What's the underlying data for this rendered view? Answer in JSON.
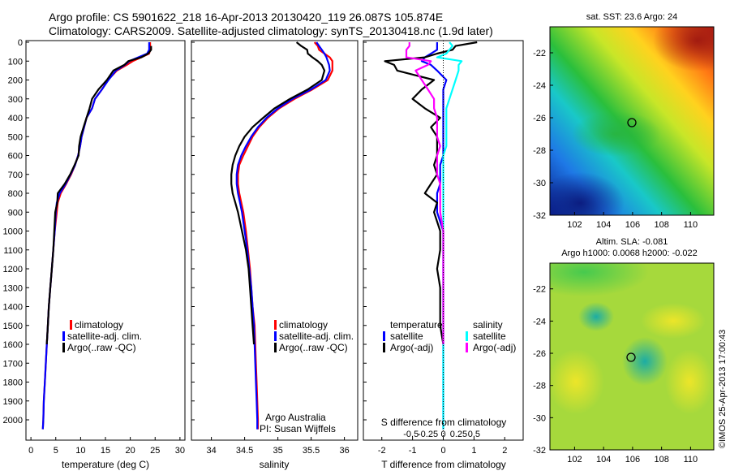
{
  "header": {
    "line1": "Argo profile: CS 5901622_218 16-Apr-2013 20130420_119 26.087S 105.874E",
    "line2": "Climatology: CARS2009. Satellite-adjusted climatology: synTS_20130418.nc (1.9d later)"
  },
  "colors": {
    "climatology": "#ff0000",
    "satellite": "#0000ff",
    "argo": "#000000",
    "sal_satellite": "#00ffff",
    "sal_argo": "#ff00ff"
  },
  "chart_data": [
    {
      "type": "line",
      "panel": "temperature",
      "xlabel": "temperature (deg C)",
      "xlim": [
        -1,
        31
      ],
      "xticks": [
        0,
        5,
        10,
        15,
        20,
        25,
        30
      ],
      "ylim": [
        0,
        2050
      ],
      "yticks": [
        0,
        100,
        200,
        300,
        400,
        500,
        600,
        700,
        800,
        900,
        1000,
        1100,
        1200,
        1300,
        1400,
        1500,
        1600,
        1700,
        1800,
        1900,
        2000
      ],
      "y_reversed": true,
      "depth": [
        0,
        20,
        40,
        60,
        80,
        100,
        120,
        150,
        200,
        250,
        300,
        350,
        400,
        450,
        500,
        550,
        600,
        650,
        700,
        750,
        800,
        850,
        900,
        1000,
        1100,
        1200,
        1300,
        1400,
        1500,
        1600,
        1700,
        1800,
        1900,
        2000,
        2050
      ],
      "series": [
        {
          "name": "climatology",
          "color": "#ff0000",
          "values": [
            24.0,
            24.0,
            24.0,
            23.8,
            22.2,
            20.5,
            19.3,
            17.3,
            15.5,
            14.3,
            12.9,
            12.3,
            11.2,
            10.7,
            10.2,
            9.9,
            9.5,
            8.9,
            8.1,
            7.1,
            6.0,
            5.4,
            5.2,
            4.8,
            4.5,
            4.2,
            3.9,
            3.6,
            3.4,
            3.2,
            3.0,
            2.8,
            2.6,
            2.5,
            2.4
          ]
        },
        {
          "name": "satellite-adj. clim.",
          "color": "#0000ff",
          "values": [
            23.8,
            23.8,
            23.8,
            23.4,
            21.6,
            19.8,
            18.9,
            17.1,
            15.6,
            14.3,
            12.9,
            12.3,
            11.2,
            10.7,
            10.2,
            9.9,
            9.5,
            8.9,
            8.0,
            7.0,
            5.8,
            5.2,
            5.0,
            4.8,
            4.5,
            4.2,
            3.9,
            3.6,
            3.4,
            3.2,
            3.0,
            2.8,
            2.6,
            2.5,
            2.4
          ]
        },
        {
          "name": "Argo(..raw -QC)",
          "color": "#000000",
          "values": [
            null,
            24.2,
            24.2,
            23.6,
            22.2,
            19.6,
            18.8,
            16.6,
            15.3,
            13.6,
            12.3,
            11.8,
            11.2,
            10.6,
            10.0,
            9.7,
            9.6,
            8.8,
            7.9,
            6.8,
            5.4,
            5.3,
            4.9,
            4.7,
            4.5,
            4.2,
            3.9,
            3.6,
            3.4,
            3.2,
            null,
            null,
            null,
            null,
            null
          ]
        }
      ],
      "legend": [
        "climatology",
        "satellite-adj. clim.",
        "Argo(..raw -QC)"
      ]
    },
    {
      "type": "line",
      "panel": "salinity",
      "xlabel": "salinity",
      "xlim": [
        33.7,
        36.2
      ],
      "xticks": [
        34,
        34.5,
        35,
        35.5,
        36
      ],
      "ylim": [
        0,
        2050
      ],
      "depth": [
        0,
        20,
        40,
        60,
        80,
        100,
        120,
        150,
        200,
        250,
        300,
        350,
        400,
        450,
        500,
        550,
        600,
        650,
        700,
        750,
        800,
        850,
        900,
        1000,
        1100,
        1200,
        1300,
        1400,
        1500,
        1600,
        1700,
        1800,
        1900,
        2000,
        2050
      ],
      "series": [
        {
          "name": "climatology",
          "color": "#ff0000",
          "values": [
            35.55,
            35.6,
            35.62,
            35.7,
            35.78,
            35.82,
            35.82,
            35.82,
            35.75,
            35.52,
            35.25,
            35.02,
            34.85,
            34.72,
            34.62,
            34.55,
            34.48,
            34.42,
            34.4,
            34.4,
            34.42,
            34.45,
            34.48,
            34.52,
            34.55,
            34.58,
            34.6,
            34.62,
            34.65,
            34.66,
            34.67,
            34.68,
            34.69,
            34.7,
            34.7
          ]
        },
        {
          "name": "satellite-adj. clim.",
          "color": "#0000ff",
          "values": [
            35.58,
            35.62,
            35.66,
            35.7,
            35.73,
            35.75,
            35.77,
            35.78,
            35.72,
            35.5,
            35.22,
            35.0,
            34.83,
            34.7,
            34.6,
            34.52,
            34.45,
            34.4,
            34.38,
            34.38,
            34.4,
            34.43,
            34.46,
            34.5,
            34.54,
            34.57,
            34.6,
            34.62,
            34.64,
            34.65,
            34.66,
            34.67,
            34.68,
            34.69,
            34.69
          ]
        },
        {
          "name": "Argo(..raw -QC)",
          "color": "#000000",
          "values": [
            35.28,
            35.35,
            35.44,
            35.45,
            35.52,
            35.6,
            35.66,
            35.7,
            35.66,
            35.45,
            35.18,
            34.95,
            34.78,
            34.62,
            34.5,
            34.42,
            34.36,
            34.32,
            34.3,
            34.3,
            34.32,
            34.36,
            34.4,
            34.46,
            34.52,
            34.56,
            34.58,
            34.6,
            34.62,
            34.64,
            null,
            null,
            null,
            null,
            null
          ]
        }
      ],
      "legend": [
        "climatology",
        "satellite-adj. clim.",
        "Argo(..raw -QC)"
      ],
      "annotation": [
        "Argo Australia",
        "PI: Susan Wijffels"
      ]
    },
    {
      "type": "line",
      "panel": "difference",
      "xlabel": "T difference from climatology",
      "xlim": [
        -2.6,
        2.6
      ],
      "xticks": [
        -2,
        -1,
        0,
        1,
        2
      ],
      "top_label": "S difference from climatology",
      "top_ticks": [
        "-0.5",
        "-0.25",
        "0",
        "0.25",
        "0.5"
      ],
      "ylim": [
        0,
        2050
      ],
      "depth": [
        0,
        20,
        40,
        60,
        80,
        100,
        120,
        150,
        200,
        250,
        300,
        350,
        400,
        450,
        500,
        550,
        600,
        650,
        700,
        750,
        800,
        850,
        900,
        1000,
        1100,
        1200,
        1300,
        1400,
        1500,
        1600,
        1700,
        1800,
        1900,
        2000,
        2050
      ],
      "series": [
        {
          "name": "temperature satellite",
          "color": "#0000ff",
          "values": [
            -0.2,
            -0.2,
            -0.2,
            -0.4,
            -0.6,
            -0.7,
            -0.4,
            -0.2,
            0.1,
            0.0,
            0.0,
            0.0,
            0.0,
            0.0,
            0.0,
            0.0,
            0.0,
            -0.1,
            -0.1,
            -0.1,
            -0.2,
            -0.2,
            -0.2,
            0.0,
            0.0,
            0.0,
            0.0,
            0.0,
            0.0,
            0.0,
            0.0,
            0.0,
            0.0,
            0.0,
            0.0
          ]
        },
        {
          "name": "temperature Argo(-adj)",
          "color": "#000000",
          "values": [
            1.1,
            0.4,
            0.3,
            -0.2,
            -0.6,
            -1.9,
            -1.6,
            -1.5,
            -0.3,
            -0.7,
            -1.0,
            -0.6,
            -0.1,
            -0.4,
            -0.2,
            -0.2,
            -0.2,
            -0.3,
            -0.2,
            -0.4,
            -0.6,
            -0.2,
            -0.3,
            -0.1,
            -0.1,
            -0.2,
            -0.1,
            -0.1,
            -0.1,
            0.0,
            null,
            null,
            null,
            null,
            null
          ]
        },
        {
          "name": "salinity satellite",
          "color": "#00ffff",
          "values": [
            0.2,
            0.3,
            0.2,
            0.1,
            -0.2,
            0.6,
            0.5,
            0.5,
            0.4,
            0.3,
            0.2,
            0.1,
            0.1,
            0.1,
            0.1,
            0.1,
            0.0,
            0.0,
            0.0,
            0.0,
            0.0,
            0.0,
            0.0,
            0.0,
            0.0,
            0.0,
            0.0,
            0.0,
            0.0,
            0.0,
            0.0,
            0.0,
            0.0,
            0.0,
            0.0
          ]
        },
        {
          "name": "salinity Argo(-adj)",
          "color": "#ff00ff",
          "values": [
            -1.1,
            -1.1,
            -1.2,
            -1.2,
            -1.2,
            -0.4,
            -0.5,
            -0.9,
            -0.7,
            -0.5,
            -0.3,
            -0.3,
            -0.2,
            -0.2,
            -0.2,
            -0.1,
            -0.2,
            -0.2,
            -0.2,
            -0.1,
            -0.1,
            -0.1,
            -0.1,
            0.0,
            0.0,
            0.0,
            0.0,
            0.0,
            0.0,
            0.0,
            null,
            null,
            null,
            null,
            null
          ]
        }
      ],
      "legend_temperature": {
        "title": "temperature",
        "items": [
          "satellite",
          "Argo(-adj)"
        ]
      },
      "legend_salinity": {
        "title": "salinity",
        "items": [
          "satellite",
          "Argo(-adj)"
        ]
      }
    },
    {
      "type": "heatmap",
      "panel": "sst_map",
      "title": "sat. SST: 23.6  Argo: 24",
      "xticks": [
        "102",
        "104",
        "106",
        "108",
        "110"
      ],
      "yticks": [
        "-22",
        "-24",
        "-26",
        "-28",
        "-30",
        "-32"
      ],
      "xlim": [
        100.3,
        111.6
      ],
      "ylim": [
        -32,
        -20.4
      ],
      "marker": {
        "lon": 105.874,
        "lat": -26.087
      }
    },
    {
      "type": "heatmap",
      "panel": "sla_map",
      "title": "Altim. SLA: -0.081",
      "subtitle": "Argo h1000: 0.0068 h2000: -0.022",
      "xticks": [
        "102",
        "104",
        "106",
        "108",
        "110"
      ],
      "yticks": [
        "-22",
        "-24",
        "-26",
        "-28",
        "-30",
        "-32"
      ],
      "xlim": [
        100.3,
        111.6
      ],
      "ylim": [
        -32,
        -20.4
      ],
      "marker": {
        "lon": 105.874,
        "lat": -26.087
      }
    }
  ],
  "footer_stamp": "©IMOS 25-Apr-2013 17:00:43"
}
